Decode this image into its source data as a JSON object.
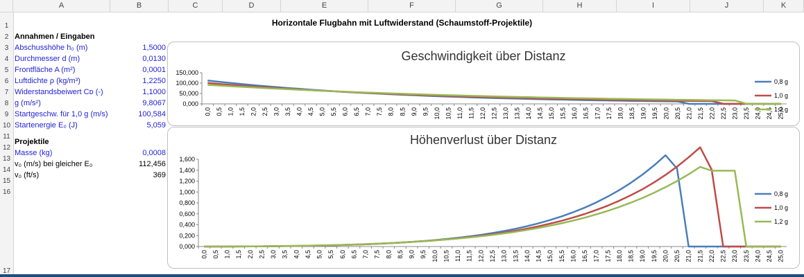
{
  "columns": [
    "A",
    "B",
    "C",
    "D",
    "E",
    "F",
    "G",
    "H",
    "I",
    "J",
    "K"
  ],
  "rows": [
    "1",
    "2",
    "3",
    "4",
    "5",
    "6",
    "7",
    "8",
    "9",
    "10",
    "11",
    "12",
    "13",
    "14",
    "15",
    "16",
    "17"
  ],
  "sheet_title": "Horizontale Flugbahn mit Luftwiderstand (Schaumstoff-Projektile)",
  "inputs": {
    "header": "Annahmen / Eingaben",
    "items": [
      {
        "label": "Abschusshöhe h₀ (m)",
        "value": "1,5000",
        "blue": true
      },
      {
        "label": "Durchmesser d (m)",
        "value": "0,0130",
        "blue": true
      },
      {
        "label": "Frontfläche A (m²)",
        "value": "0,0001",
        "blue": true
      },
      {
        "label": "Luftdichte ρ (kg/m³)",
        "value": "1,2250",
        "blue": true
      },
      {
        "label": "Widerstandsbeiwert Cᴅ (-)",
        "value": "1,1000",
        "blue": true
      },
      {
        "label": "g (m/s²)",
        "value": "9,8067",
        "blue": true
      },
      {
        "label": "Startgeschw. für 1,0 g (m/s)",
        "value": "100,584",
        "blue": true
      },
      {
        "label": "Startenergie E₀ (J)",
        "value": "5,059",
        "blue": true
      }
    ]
  },
  "projectiles": {
    "header": "Projektile",
    "items": [
      {
        "label": "Masse (kg)",
        "value": "0,0008",
        "blue": true
      },
      {
        "label": "v₀ (m/s) bei gleicher E₀",
        "value": "112,456",
        "blue": false
      },
      {
        "label": "v₀ (ft/s)",
        "value": "369",
        "blue": false
      }
    ]
  },
  "colors": {
    "s08": "#4a7ebb",
    "s10": "#be4b48",
    "s12": "#98b954"
  },
  "chart_data": [
    {
      "type": "line",
      "title": "Geschwindigkeit über Distanz",
      "x": [
        0,
        0.5,
        1,
        1.5,
        2,
        2.5,
        3,
        3.5,
        4,
        4.5,
        5,
        5.5,
        6,
        6.5,
        7,
        7.5,
        8,
        8.5,
        9,
        9.5,
        10,
        10.5,
        11,
        11.5,
        12,
        12.5,
        13,
        13.5,
        14,
        14.5,
        15,
        15.5,
        16,
        16.5,
        17,
        17.5,
        18,
        18.5,
        19,
        19.5,
        20,
        20.5,
        21,
        21.5,
        22,
        22.5,
        23,
        23.5,
        24,
        24.5,
        25
      ],
      "x_tick_labels": [
        "0,0",
        "0,5",
        "1,0",
        "1,5",
        "2,0",
        "2,5",
        "3,0",
        "3,5",
        "4,0",
        "4,5",
        "5,0",
        "5,5",
        "6,0",
        "6,5",
        "7,0",
        "7,5",
        "8,0",
        "8,5",
        "9,0",
        "9,5",
        "10,0",
        "10,5",
        "11,0",
        "11,5",
        "12,0",
        "12,5",
        "13,0",
        "13,5",
        "14,0",
        "14,5",
        "15,0",
        "15,5",
        "16,0",
        "16,5",
        "17,0",
        "17,5",
        "18,0",
        "18,5",
        "19,0",
        "19,5",
        "20,0",
        "20,5",
        "21,0",
        "21,5",
        "22,0",
        "22,5",
        "23,0",
        "23,5",
        "24,0",
        "24,5",
        "25,0"
      ],
      "y_tick_labels": [
        "150,000",
        "100,000",
        "50,000",
        "0,000"
      ],
      "y_ticks": [
        150,
        100,
        50,
        0
      ],
      "ylim": [
        0,
        150
      ],
      "legend_position": "right",
      "series": [
        {
          "name": "0,8 g",
          "color": "#4a7ebb",
          "values": [
            112.5,
            106.4,
            100.7,
            95.2,
            90.1,
            85.2,
            80.6,
            76.3,
            72.2,
            68.3,
            64.6,
            61.1,
            57.8,
            54.7,
            51.8,
            49.0,
            46.3,
            43.8,
            41.5,
            39.2,
            37.1,
            35.1,
            33.2,
            31.4,
            29.7,
            28.1,
            26.6,
            25.2,
            23.8,
            22.5,
            21.3,
            20.2,
            19.1,
            18.1,
            17.1,
            16.2,
            15.3,
            14.5,
            13.7,
            13.0,
            12.3,
            11.6,
            0,
            0,
            0,
            0,
            0,
            0,
            0,
            0,
            0
          ]
        },
        {
          "name": "1,0 g",
          "color": "#be4b48",
          "values": [
            100.6,
            96.1,
            91.7,
            87.6,
            83.6,
            79.8,
            76.2,
            72.8,
            69.5,
            66.3,
            63.3,
            60.5,
            57.7,
            55.1,
            52.6,
            50.3,
            48.0,
            45.8,
            43.8,
            41.8,
            39.9,
            38.1,
            36.4,
            34.7,
            33.2,
            31.7,
            30.2,
            28.9,
            27.6,
            26.3,
            25.1,
            24.0,
            22.9,
            21.9,
            20.9,
            19.9,
            19.0,
            18.2,
            17.4,
            16.6,
            15.8,
            15.1,
            14.4,
            13.8,
            13.2,
            0,
            0,
            0,
            0,
            0,
            0
          ]
        },
        {
          "name": "1,2 g",
          "color": "#98b954",
          "values": [
            91.8,
            88.4,
            85.1,
            82.0,
            79.0,
            76.1,
            73.3,
            70.6,
            68.0,
            65.5,
            63.1,
            60.8,
            58.6,
            56.4,
            54.3,
            52.3,
            50.4,
            48.6,
            46.8,
            45.1,
            43.4,
            41.8,
            40.3,
            38.8,
            37.4,
            36.0,
            34.7,
            33.4,
            32.2,
            31.0,
            29.9,
            28.8,
            27.7,
            26.7,
            25.7,
            24.8,
            23.9,
            23.0,
            22.1,
            21.3,
            20.5,
            19.8,
            19.0,
            18.3,
            17.7,
            17.0,
            16.4,
            0,
            0,
            0,
            0
          ]
        }
      ]
    },
    {
      "type": "line",
      "title": "Höhenverlust über Distanz",
      "x": [
        0,
        0.5,
        1,
        1.5,
        2,
        2.5,
        3,
        3.5,
        4,
        4.5,
        5,
        5.5,
        6,
        6.5,
        7,
        7.5,
        8,
        8.5,
        9,
        9.5,
        10,
        10.5,
        11,
        11.5,
        12,
        12.5,
        13,
        13.5,
        14,
        14.5,
        15,
        15.5,
        16,
        16.5,
        17,
        17.5,
        18,
        18.5,
        19,
        19.5,
        20,
        20.5,
        21,
        21.5,
        22,
        22.5,
        23,
        23.5,
        24,
        24.5,
        25
      ],
      "x_tick_labels": [
        "0,0",
        "0,5",
        "1,0",
        "1,5",
        "2,0",
        "2,5",
        "3,0",
        "3,5",
        "4,0",
        "4,5",
        "5,0",
        "5,5",
        "6,0",
        "6,5",
        "7,0",
        "7,5",
        "8,0",
        "8,5",
        "9,0",
        "9,5",
        "10,0",
        "10,5",
        "11,0",
        "11,5",
        "12,0",
        "12,5",
        "13,0",
        "13,5",
        "14,0",
        "14,5",
        "15,0",
        "15,5",
        "16,0",
        "16,5",
        "17,0",
        "17,5",
        "18,0",
        "18,5",
        "19,0",
        "19,5",
        "20,0",
        "20,5",
        "21,0",
        "21,5",
        "22,0",
        "22,5",
        "23,0",
        "23,5",
        "24,0",
        "24,5",
        "25,0"
      ],
      "y_tick_labels": [
        "1,600",
        "1,400",
        "1,200",
        "1,000",
        "0,800",
        "0,600",
        "0,400",
        "0,200",
        "0,000"
      ],
      "y_ticks": [
        1.6,
        1.4,
        1.2,
        1.0,
        0.8,
        0.6,
        0.4,
        0.2,
        0
      ],
      "ylim": [
        0,
        1.6
      ],
      "legend_position": "right",
      "series": [
        {
          "name": "0,8 g",
          "color": "#4a7ebb",
          "values": [
            0,
            0.0001,
            0.0005,
            0.0012,
            0.0022,
            0.0035,
            0.0053,
            0.0075,
            0.0102,
            0.0135,
            0.0175,
            0.0222,
            0.0277,
            0.0342,
            0.0418,
            0.0506,
            0.0607,
            0.0723,
            0.0856,
            0.1008,
            0.1182,
            0.138,
            0.1605,
            0.186,
            0.2149,
            0.2476,
            0.2846,
            0.3264,
            0.3735,
            0.4266,
            0.4864,
            0.5537,
            0.6293,
            0.7142,
            0.8095,
            0.9163,
            1.036,
            1.17,
            1.32,
            1.487,
            1.674,
            1.43,
            0,
            0,
            0,
            0,
            0,
            0,
            0,
            0,
            0
          ]
        },
        {
          "name": "1,0 g",
          "color": "#be4b48",
          "values": [
            0,
            0.0001,
            0.0006,
            0.0014,
            0.0025,
            0.004,
            0.0059,
            0.0083,
            0.0111,
            0.0145,
            0.0186,
            0.0233,
            0.0288,
            0.0352,
            0.0425,
            0.0509,
            0.0605,
            0.0714,
            0.0837,
            0.0976,
            0.1133,
            0.1309,
            0.1507,
            0.1728,
            0.1976,
            0.2253,
            0.2562,
            0.2907,
            0.3292,
            0.372,
            0.4197,
            0.4727,
            0.5317,
            0.5972,
            0.6701,
            0.7511,
            0.8411,
            0.9412,
            1.052,
            1.176,
            1.313,
            1.466,
            1.635,
            1.82,
            1.41,
            0,
            0,
            0,
            0,
            0,
            0
          ]
        },
        {
          "name": "1,2 g",
          "color": "#98b954",
          "values": [
            0,
            0.0001,
            0.0007,
            0.0016,
            0.0028,
            0.0045,
            0.0065,
            0.0091,
            0.0121,
            0.0157,
            0.0199,
            0.0248,
            0.0304,
            0.0368,
            0.0441,
            0.0523,
            0.0616,
            0.0721,
            0.0838,
            0.0969,
            0.1116,
            0.1279,
            0.1461,
            0.1662,
            0.1886,
            0.2134,
            0.2408,
            0.271,
            0.3044,
            0.3412,
            0.3818,
            0.4265,
            0.4757,
            0.5298,
            0.5892,
            0.6544,
            0.726,
            0.8045,
            0.8906,
            0.9849,
            1.088,
            1.201,
            1.325,
            1.46,
            1.39,
            1.39,
            1.39,
            0,
            0,
            0,
            0
          ]
        }
      ]
    }
  ]
}
